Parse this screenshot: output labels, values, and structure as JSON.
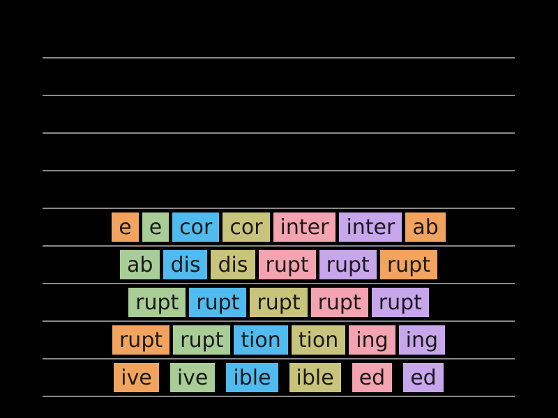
{
  "app": {
    "background": "#000000"
  },
  "colors": {
    "line": "#8a8a8a",
    "tile_text": "#1a1a1a",
    "tiles": {
      "orange": "#F2A45F",
      "green": "#A9CD96",
      "blue": "#50BBEE",
      "olive": "#C9C47C",
      "pink": "#F4A3B0",
      "purple": "#C7A6EC"
    }
  },
  "ruled_lines": {
    "count": 10
  },
  "tile_rows": [
    {
      "tiles": [
        {
          "label": "e",
          "color": "orange"
        },
        {
          "label": "e",
          "color": "green"
        },
        {
          "label": "cor",
          "color": "blue"
        },
        {
          "label": "cor",
          "color": "olive"
        },
        {
          "label": "inter",
          "color": "pink"
        },
        {
          "label": "inter",
          "color": "purple"
        },
        {
          "label": "ab",
          "color": "orange"
        }
      ]
    },
    {
      "tiles": [
        {
          "label": "ab",
          "color": "green"
        },
        {
          "label": "dis",
          "color": "blue"
        },
        {
          "label": "dis",
          "color": "olive"
        },
        {
          "label": "rupt",
          "color": "pink"
        },
        {
          "label": "rupt",
          "color": "purple"
        },
        {
          "label": "rupt",
          "color": "orange"
        }
      ]
    },
    {
      "tiles": [
        {
          "label": "rupt",
          "color": "green"
        },
        {
          "label": "rupt",
          "color": "blue"
        },
        {
          "label": "rupt",
          "color": "olive"
        },
        {
          "label": "rupt",
          "color": "pink"
        },
        {
          "label": "rupt",
          "color": "purple"
        }
      ]
    },
    {
      "tiles": [
        {
          "label": "rupt",
          "color": "orange"
        },
        {
          "label": "rupt",
          "color": "green"
        },
        {
          "label": "tion",
          "color": "blue"
        },
        {
          "label": "tion",
          "color": "olive"
        },
        {
          "label": "ing",
          "color": "pink"
        },
        {
          "label": "ing",
          "color": "purple"
        }
      ]
    },
    {
      "tiles": [
        {
          "label": "ive",
          "color": "orange"
        },
        {
          "label": "ive",
          "color": "green"
        },
        {
          "label": "ible",
          "color": "blue"
        },
        {
          "label": "ible",
          "color": "olive"
        },
        {
          "label": "ed",
          "color": "pink"
        },
        {
          "label": "ed",
          "color": "purple"
        }
      ]
    }
  ]
}
